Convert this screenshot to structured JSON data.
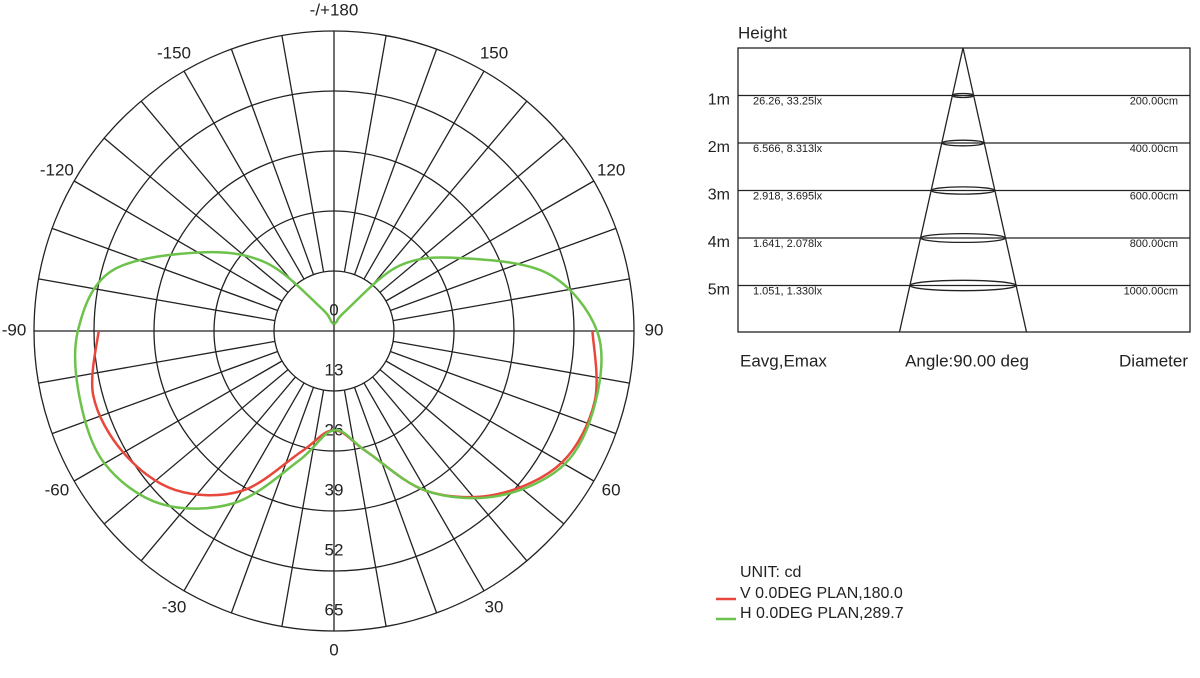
{
  "chart_data": {
    "type": "polar",
    "unit": "UNIT: cd",
    "x": [
      -180,
      -165,
      -150,
      -135,
      -120,
      -105,
      -90,
      -75,
      -60,
      -45,
      -30,
      -15,
      0,
      15,
      30,
      45,
      60,
      75,
      90,
      105,
      120,
      135,
      150,
      165,
      180
    ],
    "series": [
      {
        "name": "V 0.0DEG PLAN,180.0",
        "color": "#e8473c",
        "values": [
          null,
          null,
          null,
          null,
          null,
          null,
          51,
          54,
          52.7,
          48.7,
          40,
          27,
          21.5,
          27,
          40,
          50,
          57,
          58.5,
          56,
          null,
          null,
          null,
          null,
          null,
          null
        ]
      },
      {
        "name": "H 0.0DEG PLAN,289.7",
        "color": "#6cc24a",
        "values": [
          1.5,
          2,
          6,
          21,
          34,
          50,
          55.5,
          57,
          57.4,
          53,
          43,
          29,
          21.5,
          27,
          40,
          50.5,
          57.7,
          58.7,
          57,
          48,
          31.6,
          20,
          5,
          2,
          1.5
        ]
      }
    ],
    "rlim": [
      0,
      65
    ],
    "rticks": [
      0,
      13,
      26,
      39,
      52,
      65
    ],
    "xticks": [
      {
        "value": 180,
        "label": "-/+180"
      },
      150,
      120,
      90,
      60,
      30,
      0,
      -30,
      -60,
      -90,
      -120,
      -150
    ],
    "xticks_minor": [
      -170,
      -160,
      -140,
      -130,
      -110,
      -100,
      -80,
      -70,
      -50,
      -40,
      -20,
      -10,
      10,
      20,
      40,
      50,
      70,
      80,
      100,
      110,
      130,
      140,
      160,
      170
    ]
  },
  "beam_table": {
    "header": "Height",
    "rows": [
      {
        "height": "1m",
        "illuminance": "26.26, 33.25lx",
        "diameter": "200.00cm"
      },
      {
        "height": "2m",
        "illuminance": "6.566, 8.313lx",
        "diameter": "400.00cm"
      },
      {
        "height": "3m",
        "illuminance": "2.918, 3.695lx",
        "diameter": "600.00cm"
      },
      {
        "height": "4m",
        "illuminance": "1.641, 2.078lx",
        "diameter": "800.00cm"
      },
      {
        "height": "5m",
        "illuminance": "1.051, 1.330lx",
        "diameter": "1000.00cm"
      }
    ],
    "footer": {
      "left": "Eavg,Emax",
      "center": "Angle:90.00 deg",
      "right": "Diameter"
    }
  }
}
